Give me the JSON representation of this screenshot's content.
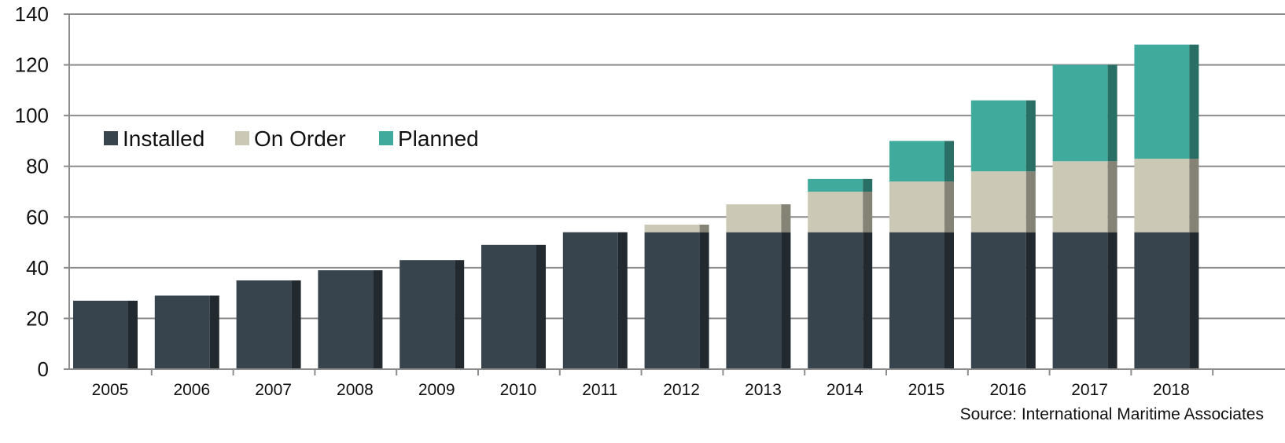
{
  "chart_data": {
    "type": "bar",
    "stacked": true,
    "categories": [
      "2005",
      "2006",
      "2007",
      "2008",
      "2009",
      "2010",
      "2011",
      "2012",
      "2013",
      "2014",
      "2015",
      "2016",
      "2017",
      "2018"
    ],
    "series": [
      {
        "name": "Installed",
        "color": "#37444e",
        "values": [
          27,
          29,
          35,
          39,
          43,
          49,
          54,
          54,
          54,
          54,
          54,
          54,
          54,
          54
        ]
      },
      {
        "name": "On Order",
        "color": "#ccc8b6",
        "values": [
          0,
          0,
          0,
          0,
          0,
          0,
          0,
          3,
          11,
          16,
          20,
          24,
          28,
          29
        ]
      },
      {
        "name": "Planned",
        "color": "#40aa9c",
        "values": [
          0,
          0,
          0,
          0,
          0,
          0,
          0,
          0,
          0,
          5,
          16,
          28,
          38,
          45
        ]
      }
    ],
    "ylim": [
      0,
      140
    ],
    "yticks": [
      "0",
      "20",
      "40",
      "60",
      "80",
      "100",
      "120",
      "140"
    ],
    "grid": true,
    "legend_position": "top-left",
    "source": "Source: International Maritime Associates"
  }
}
